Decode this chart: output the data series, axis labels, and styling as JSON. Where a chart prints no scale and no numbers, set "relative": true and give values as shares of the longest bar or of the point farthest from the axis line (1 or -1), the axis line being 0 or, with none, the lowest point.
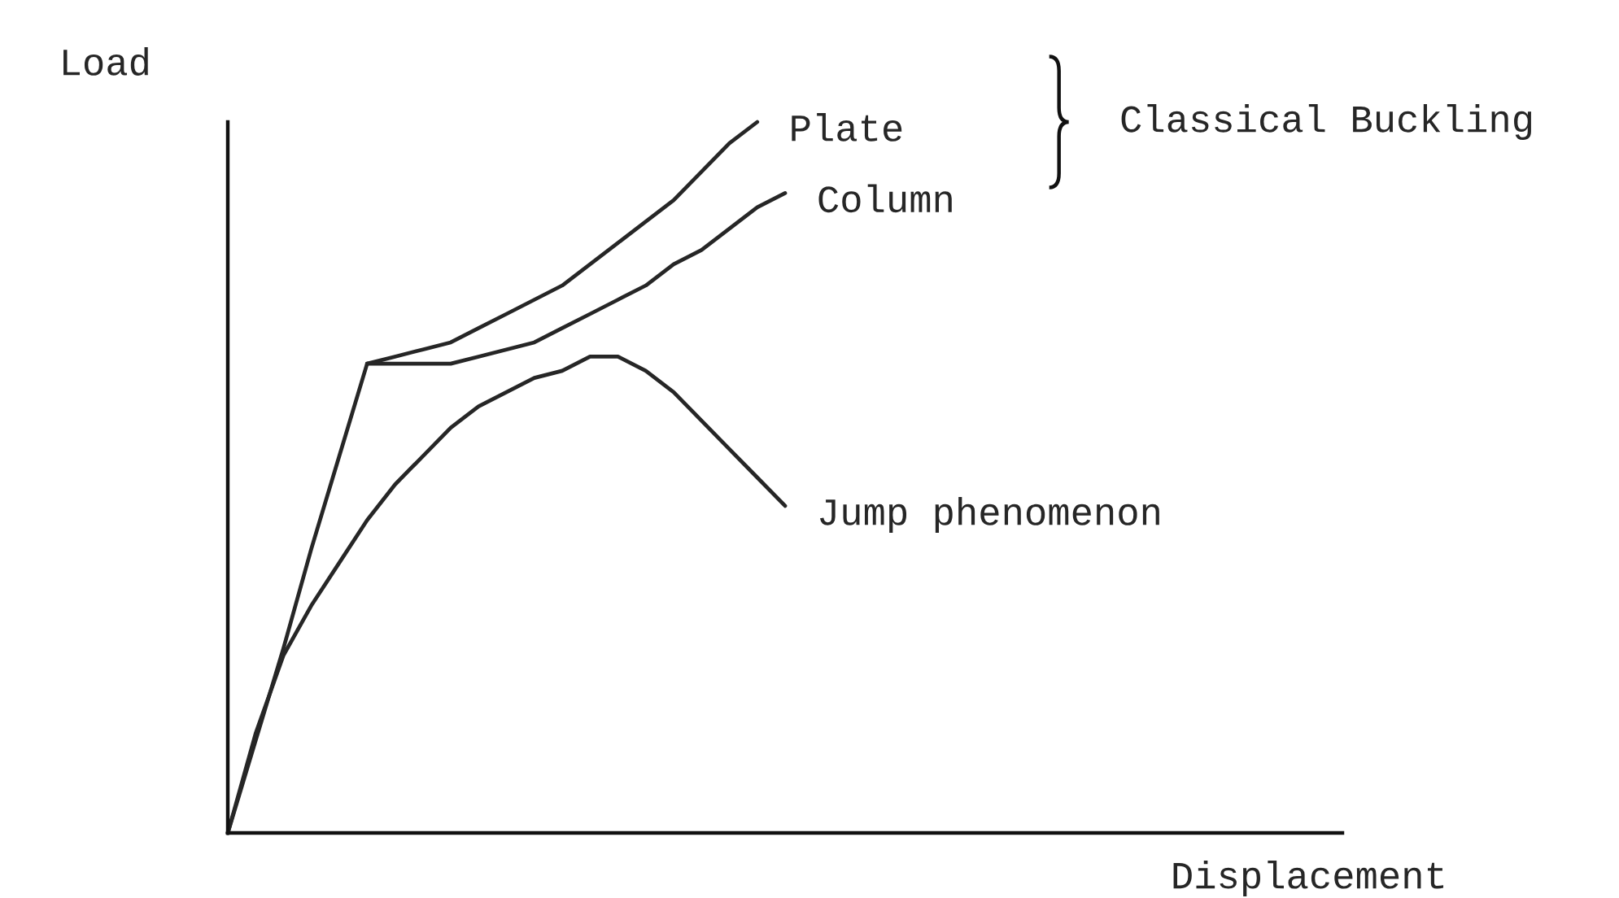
{
  "chart_data": {
    "type": "line",
    "relative": true,
    "xlabel": "Displacement",
    "ylabel": "Load",
    "annotations": [
      "Classical Buckling"
    ],
    "categories": [
      null,
      null,
      null,
      null,
      null,
      null,
      null,
      null,
      null,
      null,
      null,
      null,
      null,
      null,
      null,
      null,
      null,
      null,
      null,
      null,
      null,
      null,
      null,
      null,
      null,
      null,
      null,
      null,
      null,
      null,
      null,
      null,
      null,
      null,
      null,
      null,
      null,
      null,
      null,
      null,
      null
    ],
    "series": [
      {
        "color": "#262626",
        "values": [
          0,
          0.13,
          0.26,
          0.4,
          0.53,
          0.66,
          null,
          null,
          null,
          null,
          null,
          null,
          null,
          null,
          null,
          null,
          null,
          null,
          null,
          null,
          null,
          null,
          null,
          null,
          null,
          null,
          null,
          null,
          null,
          null,
          null,
          null,
          null,
          null,
          null,
          null,
          null,
          null,
          null,
          null,
          null
        ]
      },
      {
        "name": "Plate",
        "color": "#262626",
        "values": [
          null,
          null,
          null,
          null,
          null,
          0.66,
          0.67,
          0.68,
          0.69,
          0.71,
          0.73,
          0.75,
          0.77,
          0.8,
          0.83,
          0.86,
          0.89,
          0.93,
          0.97,
          1,
          null,
          null,
          null,
          null,
          null,
          null,
          null,
          null,
          null,
          null,
          null,
          null,
          null,
          null,
          null,
          null,
          null,
          null,
          null,
          null,
          null
        ]
      },
      {
        "name": "Column",
        "color": "#262626",
        "values": [
          null,
          null,
          null,
          null,
          null,
          0.66,
          0.66,
          0.66,
          0.66,
          0.67,
          0.68,
          0.69,
          0.71,
          0.73,
          0.75,
          0.77,
          0.8,
          0.82,
          0.85,
          0.88,
          0.9,
          null,
          null,
          null,
          null,
          null,
          null,
          null,
          null,
          null,
          null,
          null,
          null,
          null,
          null,
          null,
          null,
          null,
          null,
          null,
          null
        ]
      },
      {
        "name": "Jump phenomenon",
        "color": "#262626",
        "values": [
          0,
          0.14,
          0.25,
          0.32,
          0.38,
          0.44,
          0.49,
          0.53,
          0.57,
          0.6,
          0.62,
          0.64,
          0.65,
          0.67,
          0.67,
          0.65,
          0.62,
          0.58,
          0.54,
          0.5,
          0.46,
          null,
          null,
          null,
          null,
          null,
          null,
          null,
          null,
          null,
          null,
          null,
          null,
          null,
          null,
          null,
          null,
          null,
          null,
          null,
          null
        ]
      }
    ]
  }
}
